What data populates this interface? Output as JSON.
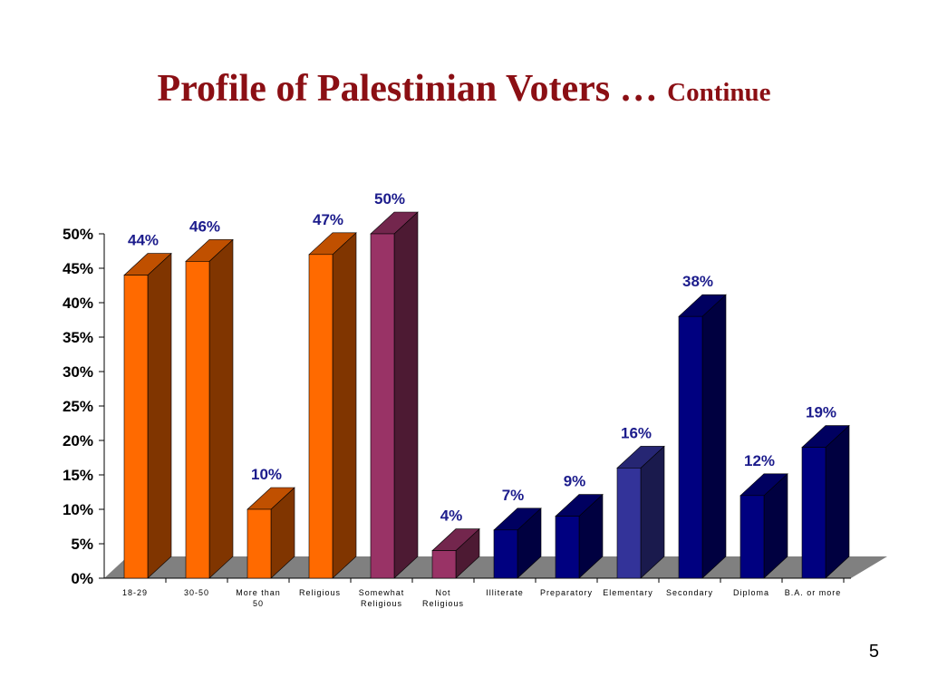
{
  "slide": {
    "title_main": "Profile of Palestinian Voters …",
    "title_sub": "Continue",
    "page_number": "5"
  },
  "chart_data": {
    "type": "bar",
    "style": "3d-columns",
    "title": "",
    "xlabel": "",
    "ylabel": "",
    "ylim": [
      0,
      50
    ],
    "yticks": [
      "0%",
      "5%",
      "10%",
      "15%",
      "20%",
      "25%",
      "30%",
      "35%",
      "40%",
      "45%",
      "50%"
    ],
    "grid": false,
    "legend": "none",
    "categories": [
      [
        "18-29"
      ],
      [
        "30-50"
      ],
      [
        "More than",
        "50"
      ],
      [
        "Religious"
      ],
      [
        "Somewhat",
        "Religious"
      ],
      [
        "Not",
        "Religious"
      ],
      [
        "Illiterate"
      ],
      [
        "Preparatory"
      ],
      [
        "Elementary"
      ],
      [
        "Secondary"
      ],
      [
        "Diploma"
      ],
      [
        "B.A. or more"
      ]
    ],
    "values": [
      44,
      46,
      10,
      47,
      50,
      4,
      7,
      9,
      16,
      38,
      12,
      19
    ],
    "data_labels": [
      "44%",
      "46%",
      "10%",
      "47%",
      "50%",
      "4%",
      "7%",
      "9%",
      "16%",
      "38%",
      "12%",
      "19%"
    ],
    "colors": [
      "#ff6a00",
      "#ff6a00",
      "#ff6a00",
      "#ff6a00",
      "#993366",
      "#993366",
      "#000080",
      "#000080",
      "#333399",
      "#000080",
      "#000080",
      "#000080"
    ],
    "side_colors": [
      "#803500",
      "#803500",
      "#803500",
      "#803500",
      "#4d1a33",
      "#4d1a33",
      "#000040",
      "#000040",
      "#1a1a4d",
      "#000040",
      "#000040",
      "#000040"
    ],
    "top_colors": [
      "#c05000",
      "#c05000",
      "#c05000",
      "#c05000",
      "#73264d",
      "#73264d",
      "#000060",
      "#000060",
      "#262673",
      "#000060",
      "#000060",
      "#000060"
    ],
    "floor_color": "#808080",
    "label_color": "#1c1c8c"
  }
}
